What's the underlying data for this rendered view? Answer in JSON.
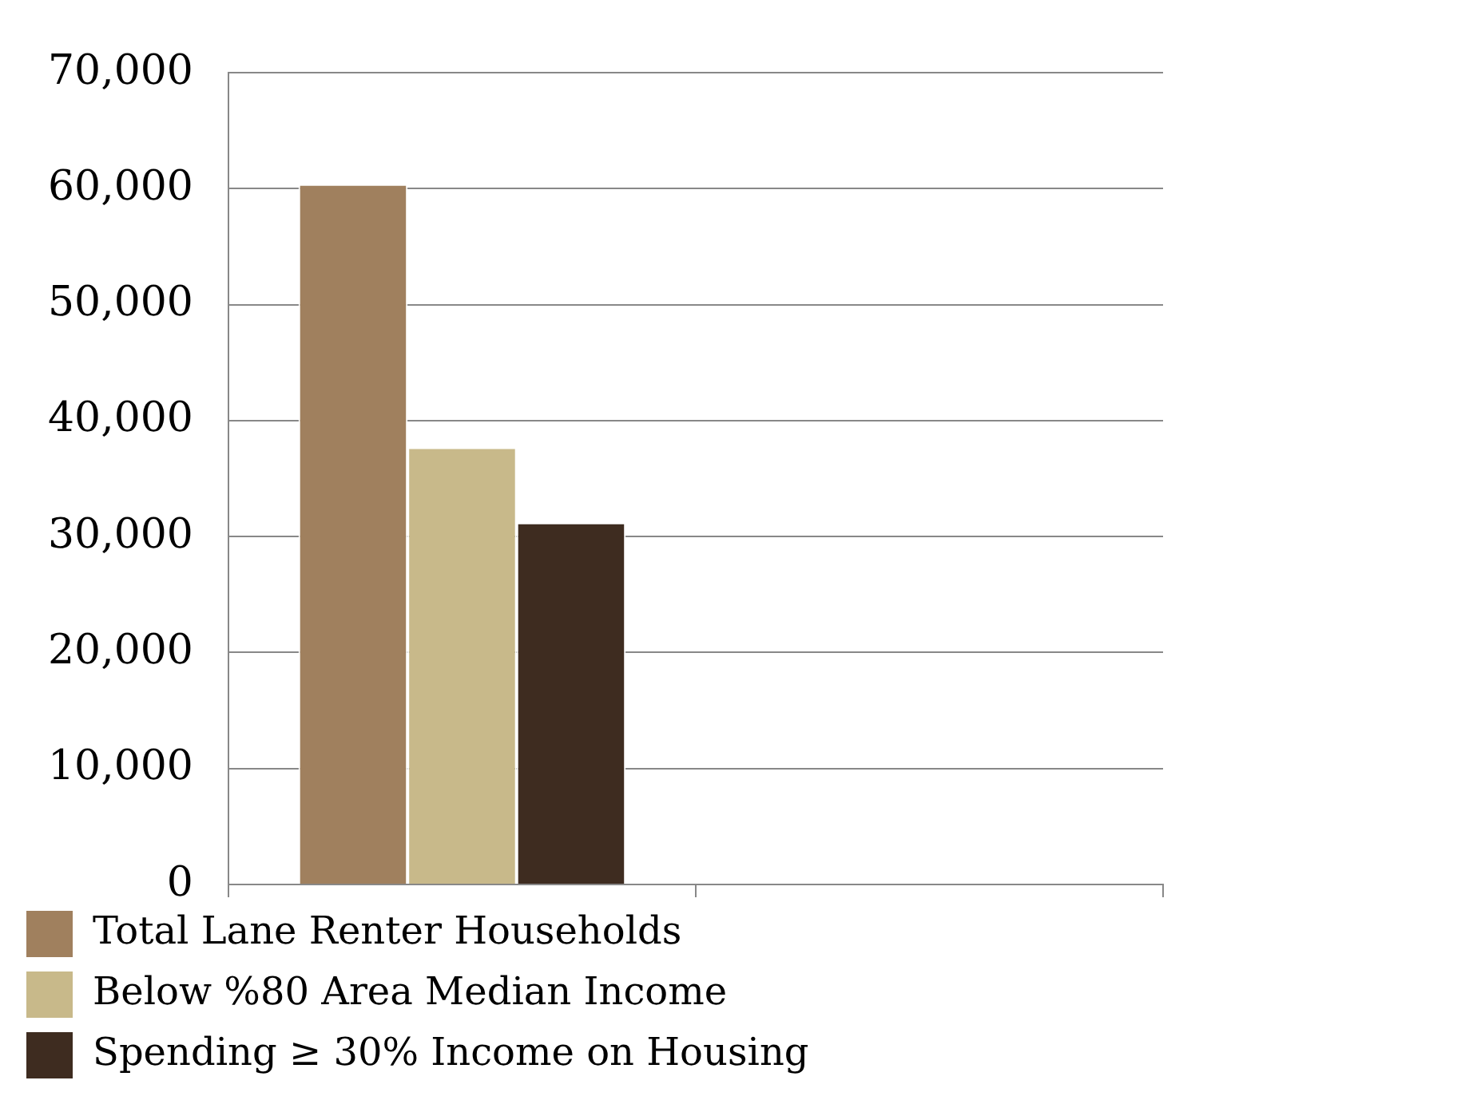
{
  "chart_data": {
    "type": "bar",
    "categories": [
      null,
      null
    ],
    "series": [
      {
        "name": "Total Lane Renter Households",
        "color": "#a0805e",
        "values": [
          60400,
          null
        ]
      },
      {
        "name": "Below %80 Area Median Income",
        "color": "#c8b98a",
        "values": [
          37700,
          null
        ]
      },
      {
        "name": "Spending ≥ 30% Income on Housing",
        "color": "#3e2c20",
        "values": [
          31200,
          null
        ]
      }
    ],
    "ylim": [
      0,
      70000
    ],
    "yticks": [
      0,
      {
        "value": 10000,
        "label": "10,000"
      },
      {
        "value": 20000,
        "label": "20,000"
      },
      {
        "value": 30000,
        "label": "30,000"
      },
      {
        "value": 40000,
        "label": "40,000"
      },
      {
        "value": 50000,
        "label": "50,000"
      },
      {
        "value": 60000,
        "label": "60,000"
      },
      {
        "value": 70000,
        "label": "70,000"
      }
    ],
    "grid": "y",
    "legend": "bottom"
  }
}
